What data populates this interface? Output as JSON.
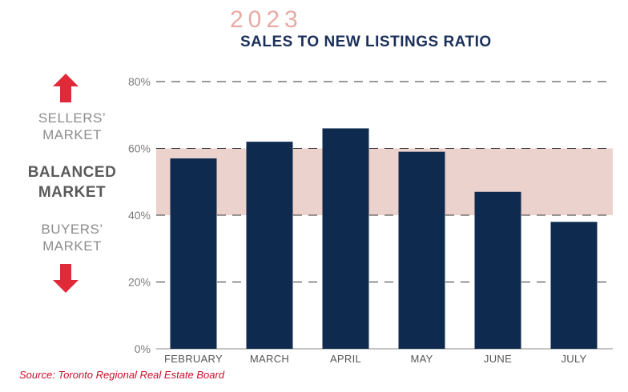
{
  "header": {
    "year": "2023",
    "title": "SALES TO NEW LISTINGS RATIO"
  },
  "side": {
    "sellers": [
      "SELLERS’",
      "MARKET"
    ],
    "balanced": [
      "BALANCED",
      "MARKET"
    ],
    "buyers": [
      "BUYERS’",
      "MARKET"
    ]
  },
  "source": "Source: Toronto Regional Real Estate Board",
  "colors": {
    "bar": "#0f2a4f",
    "band": "#ecd2cd",
    "arrow": "#e02a3a",
    "title": "#1a2f5a",
    "year": "#e8aaa4"
  },
  "chart_data": {
    "type": "bar",
    "categories": [
      "FEBRUARY",
      "MARCH",
      "APRIL",
      "MAY",
      "JUNE",
      "JULY"
    ],
    "values": [
      57,
      62,
      66,
      59,
      47,
      38
    ],
    "ylim": [
      0,
      80
    ],
    "yticks": [
      0,
      20,
      40,
      60,
      80
    ],
    "ytick_labels": [
      "0%",
      "20%",
      "40%",
      "60%",
      "80%"
    ],
    "balanced_band": [
      40,
      60
    ],
    "grid": true
  }
}
